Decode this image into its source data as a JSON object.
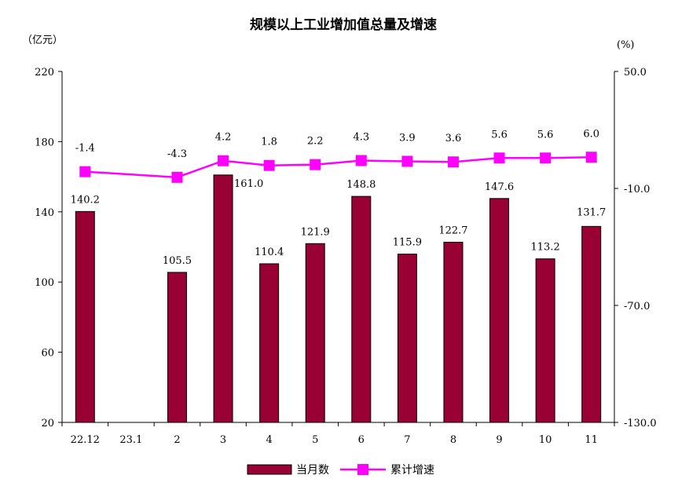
{
  "chart_data": {
    "type": "bar",
    "title": "规模以上工业增加值总量及增速",
    "categories": [
      "22.12",
      "23.1",
      "2",
      "3",
      "4",
      "5",
      "6",
      "7",
      "8",
      "9",
      "10",
      "11"
    ],
    "series": [
      {
        "name": "当月数",
        "type": "bar",
        "axis": "left",
        "color": "#990033",
        "values": [
          140.2,
          null,
          105.5,
          161.0,
          110.4,
          121.9,
          148.8,
          115.9,
          122.7,
          147.6,
          113.2,
          131.7
        ],
        "labels": [
          "140.2",
          "",
          "105.5",
          "161.0",
          "110.4",
          "121.9",
          "148.8",
          "115.9",
          "122.7",
          "147.6",
          "113.2",
          "131.7"
        ]
      },
      {
        "name": "累计增速",
        "type": "line",
        "axis": "right",
        "color": "#ff00ff",
        "values": [
          -1.4,
          null,
          -4.3,
          4.2,
          1.8,
          2.2,
          4.3,
          3.9,
          3.6,
          5.6,
          5.6,
          6.0
        ],
        "labels": [
          "-1.4",
          "",
          "-4.3",
          "4.2",
          "1.8",
          "2.2",
          "4.3",
          "3.9",
          "3.6",
          "5.6",
          "5.6",
          "6.0"
        ]
      }
    ],
    "y_left": {
      "unit": "（亿元）",
      "min": 20,
      "max": 220,
      "ticks": [
        20,
        60,
        100,
        140,
        180,
        220
      ],
      "tick_labels": [
        "20",
        "60",
        "100",
        "140",
        "180",
        "220"
      ]
    },
    "y_right": {
      "unit": "(%)",
      "min": -130,
      "max": 50,
      "ticks": [
        -130,
        -70,
        -10,
        50
      ],
      "tick_labels": [
        "-130.0",
        "-70.0",
        "-10.0",
        "50.0"
      ]
    },
    "legend": {
      "position": "bottom",
      "items": [
        "当月数",
        "累计增速"
      ]
    },
    "grid": false
  }
}
